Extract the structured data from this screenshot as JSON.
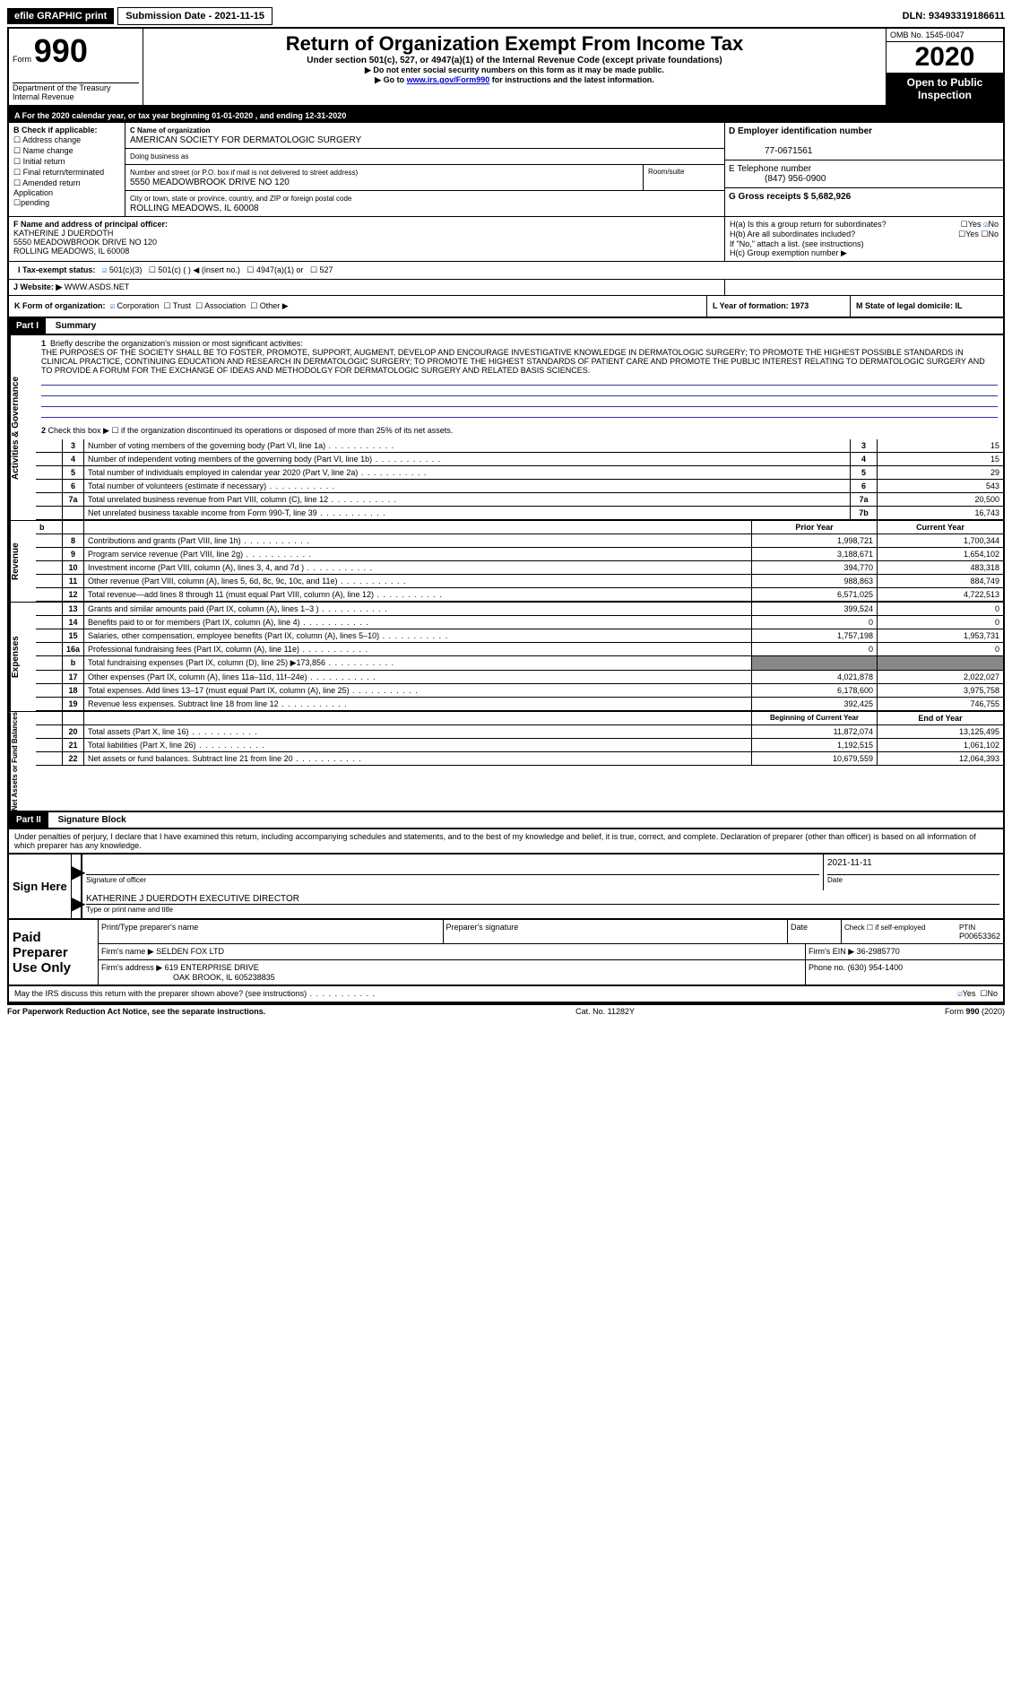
{
  "topbar": {
    "efile": "efile GRAPHIC print",
    "submission_label": "Submission Date - 2021-11-15",
    "dln": "DLN: 93493319186611"
  },
  "header": {
    "form_prefix": "Form",
    "form_number": "990",
    "dept1": "Department of the Treasury",
    "dept2": "Internal Revenue",
    "title": "Return of Organization Exempt From Income Tax",
    "subtitle": "Under section 501(c), 527, or 4947(a)(1) of the Internal Revenue Code (except private foundations)",
    "note1": "▶ Do not enter social security numbers on this form as it may be made public.",
    "note2_a": "▶ Go to ",
    "note2_link": "www.irs.gov/Form990",
    "note2_b": " for instructions and the latest information.",
    "omb": "OMB No. 1545-0047",
    "year": "2020",
    "open_public1": "Open to Public",
    "open_public2": "Inspection"
  },
  "line_a": "A For the 2020 calendar year, or tax year beginning 01-01-2020    , and ending 12-31-2020",
  "box_b": {
    "label": "B Check if applicable:",
    "addr": "Address change",
    "name": "Name change",
    "initial": "Initial return",
    "final": "Final return/terminated",
    "amended": "Amended return Application",
    "pending": "pending"
  },
  "box_c": {
    "label": "C Name of organization",
    "org": "AMERICAN SOCIETY FOR DERMATOLOGIC SURGERY",
    "dba": "Doing business as",
    "street_label": "Number and street (or P.O. box if mail is not delivered to street address)",
    "room_label": "Room/suite",
    "street": "5550 MEADOWBROOK DRIVE NO 120",
    "city_label": "City or town, state or province, country, and ZIP or foreign postal code",
    "city": "ROLLING MEADOWS, IL  60008"
  },
  "box_d": {
    "label": "D Employer identification number",
    "value": "77-0671561"
  },
  "box_e": {
    "label": "E Telephone number",
    "value": "(847) 956-0900"
  },
  "box_g": {
    "label": "G Gross receipts $ 5,682,926"
  },
  "box_f": {
    "label": "F  Name and address of principal officer:",
    "name": "KATHERINE J DUERDOTH",
    "addr1": "5550 MEADOWBROOK DRIVE NO 120",
    "addr2": "ROLLING MEADOWS, IL  60008"
  },
  "box_h": {
    "ha": "H(a)  Is this a group return for subordinates?",
    "hb": "H(b)  Are all subordinates included?",
    "note": "If \"No,\" attach a list. (see instructions)",
    "hc": "H(c)  Group exemption number ▶"
  },
  "box_i": "I    Tax-exempt status:",
  "box_j": {
    "label": "J   Website: ▶",
    "value": " WWW.ASDS.NET"
  },
  "box_k": "K Form of organization:",
  "box_l": "L Year of formation: 1973",
  "box_m": "M State of legal domicile: IL",
  "part1": {
    "label": "Part I",
    "title": "Summary",
    "line1_label": "1",
    "line1_text": "Briefly describe the organization's mission or most significant activities:",
    "mission": "THE PURPOSES OF THE SOCIETY SHALL BE TO FOSTER, PROMOTE, SUPPORT, AUGMENT, DEVELOP AND ENCOURAGE INVESTIGATIVE KNOWLEDGE IN DERMATOLOGIC SURGERY; TO PROMOTE THE HIGHEST POSSIBLE STANDARDS IN CLINICAL PRACTICE, CONTINUING EDUCATION AND RESEARCH IN DERMATOLOGIC SURGERY; TO PROMOTE THE HIGHEST STANDARDS OF PATIENT CARE AND PROMOTE THE PUBLIC INTEREST RELATING TO DERMATOLOGIC SURGERY AND TO PROVIDE A FORUM FOR THE EXCHANGE OF IDEAS AND METHODOLGY FOR DERMATOLOGIC SURGERY AND RELATED BASIS SCIENCES.",
    "line2": "Check this box ▶ ☐  if the organization discontinued its operations or disposed of more than 25% of its net assets.",
    "sidebar_gov": "Activities & Governance",
    "sidebar_rev": "Revenue",
    "sidebar_exp": "Expenses",
    "sidebar_net": "Net Assets or Fund Balances"
  },
  "gov_rows": [
    {
      "n": "3",
      "t": "Number of voting members of the governing body (Part VI, line 1a)",
      "b": "3",
      "v": "15"
    },
    {
      "n": "4",
      "t": "Number of independent voting members of the governing body (Part VI, line 1b)",
      "b": "4",
      "v": "15"
    },
    {
      "n": "5",
      "t": "Total number of individuals employed in calendar year 2020 (Part V, line 2a)",
      "b": "5",
      "v": "29"
    },
    {
      "n": "6",
      "t": "Total number of volunteers (estimate if necessary)",
      "b": "6",
      "v": "543"
    },
    {
      "n": "7a",
      "t": "Total unrelated business revenue from Part VIII, column (C), line 12",
      "b": "7a",
      "v": "20,500"
    },
    {
      "n": "",
      "t": "Net unrelated business taxable income from Form 990-T, line 39",
      "b": "7b",
      "v": "16,743"
    }
  ],
  "rev_header": {
    "py": "Prior Year",
    "cy": "Current Year"
  },
  "rev_rows": [
    {
      "n": "8",
      "t": "Contributions and grants (Part VIII, line 1h)",
      "py": "1,998,721",
      "cy": "1,700,344"
    },
    {
      "n": "9",
      "t": "Program service revenue (Part VIII, line 2g)",
      "py": "3,188,671",
      "cy": "1,654,102"
    },
    {
      "n": "10",
      "t": "Investment income (Part VIII, column (A), lines 3, 4, and 7d )",
      "py": "394,770",
      "cy": "483,318"
    },
    {
      "n": "11",
      "t": "Other revenue (Part VIII, column (A), lines 5, 6d, 8c, 9c, 10c, and 11e)",
      "py": "988,863",
      "cy": "884,749"
    },
    {
      "n": "12",
      "t": "Total revenue—add lines 8 through 11 (must equal Part VIII, column (A), line 12)",
      "py": "6,571,025",
      "cy": "4,722,513"
    }
  ],
  "exp_rows": [
    {
      "n": "13",
      "t": "Grants and similar amounts paid (Part IX, column (A), lines 1–3 )",
      "py": "399,524",
      "cy": "0"
    },
    {
      "n": "14",
      "t": "Benefits paid to or for members (Part IX, column (A), line 4)",
      "py": "0",
      "cy": "0"
    },
    {
      "n": "15",
      "t": "Salaries, other compensation, employee benefits (Part IX, column (A), lines 5–10)",
      "py": "1,757,198",
      "cy": "1,953,731"
    },
    {
      "n": "16a",
      "t": "Professional fundraising fees (Part IX, column (A), line 11e)",
      "py": "0",
      "cy": "0"
    },
    {
      "n": "b",
      "t": "Total fundraising expenses (Part IX, column (D), line 25) ▶173,856",
      "py": "",
      "cy": "",
      "shade": true
    },
    {
      "n": "17",
      "t": "Other expenses (Part IX, column (A), lines 11a–11d, 11f–24e)",
      "py": "4,021,878",
      "cy": "2,022,027"
    },
    {
      "n": "18",
      "t": "Total expenses. Add lines 13–17 (must equal Part IX, column (A), line 25)",
      "py": "6,178,600",
      "cy": "3,975,758"
    },
    {
      "n": "19",
      "t": "Revenue less expenses. Subtract line 18 from line 12",
      "py": "392,425",
      "cy": "746,755"
    }
  ],
  "net_header": {
    "py": "Beginning of Current Year",
    "cy": "End of Year"
  },
  "net_rows": [
    {
      "n": "20",
      "t": "Total assets (Part X, line 16)",
      "py": "11,872,074",
      "cy": "13,125,495"
    },
    {
      "n": "21",
      "t": "Total liabilities (Part X, line 26)",
      "py": "1,192,515",
      "cy": "1,061,102"
    },
    {
      "n": "22",
      "t": "Net assets or fund balances. Subtract line 21 from line 20",
      "py": "10,679,559",
      "cy": "12,064,393"
    }
  ],
  "part2": {
    "label": "Part II",
    "title": "Signature Block",
    "penalties": "Under penalties of perjury, I declare that I have examined this return, including accompanying schedules and statements, and to the best of my knowledge and belief, it is true, correct, and complete. Declaration of preparer (other than officer) is based on all information of which preparer has any knowledge."
  },
  "sign": {
    "here": "Sign Here",
    "sig_label": "Signature of officer",
    "date": "2021-11-11",
    "date_label": "Date",
    "name": "KATHERINE J DUERDOTH  EXECUTIVE DIRECTOR",
    "name_label": "Type or print name and title"
  },
  "paid": {
    "label": "Paid Preparer Use Only",
    "h1": "Print/Type preparer's name",
    "h2": "Preparer's signature",
    "h3": "Date",
    "h4a": "Check ☐ if self-employed",
    "h4b": "PTIN",
    "ptin": "P00653362",
    "firm_name_label": "Firm's name    ▶",
    "firm_name": "SELDEN FOX LTD",
    "firm_ein_label": "Firm's EIN ▶",
    "firm_ein": "36-2985770",
    "firm_addr_label": "Firm's address ▶",
    "firm_addr1": "619 ENTERPRISE DRIVE",
    "firm_addr2": "OAK BROOK, IL  605238835",
    "phone_label": "Phone no.",
    "phone": "(630) 954-1400"
  },
  "discuss": "May the IRS discuss this return with the preparer shown above? (see instructions)",
  "footer": {
    "left": "For Paperwork Reduction Act Notice, see the separate instructions.",
    "mid": "Cat. No. 11282Y",
    "right": "Form 990 (2020)"
  },
  "yes": "Yes",
  "no": "No",
  "corp": "Corporation",
  "trust": "Trust",
  "assoc": "Association",
  "other": "Other ▶",
  "c501c3": "501(c)(3)",
  "c501c": "501(c) (  ) ◀ (insert no.)",
  "c4947": "4947(a)(1) or",
  "c527": "527"
}
